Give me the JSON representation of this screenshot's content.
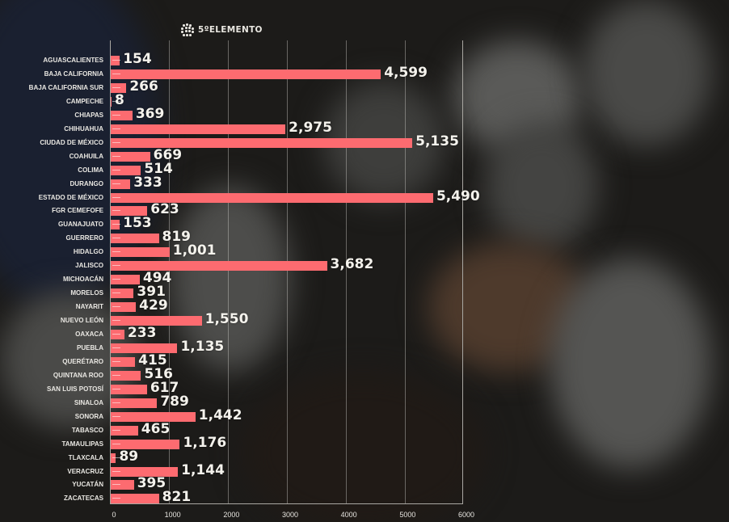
{
  "brand": {
    "name": "5ºELEMENTO",
    "icon": "dot-grid-logo-icon"
  },
  "colors": {
    "bar": "#fd6b70",
    "text": "#f4f2ec",
    "grid": "#a9a7a2",
    "background": "#1c1b19"
  },
  "chart_data": {
    "type": "bar",
    "orientation": "horizontal",
    "title": "",
    "xlabel": "",
    "ylabel": "",
    "xlim": [
      0,
      6000
    ],
    "xticks": [
      "0",
      "1000",
      "2000",
      "3000",
      "4000",
      "5000",
      "6000"
    ],
    "grid": true,
    "legend": null,
    "categories": [
      "AGUASCALIENTES",
      "BAJA CALIFORNIA",
      "BAJA CALIFORNIA SUR",
      "CAMPECHE",
      "CHIAPAS",
      "CHIHUAHUA",
      "CIUDAD DE MÉXICO",
      "COAHUILA",
      "COLIMA",
      "DURANGO",
      "ESTADO DE MÉXICO",
      "FGR CEMEFOFE",
      "GUANAJUATO",
      "GUERRERO",
      "HIDALGO",
      "JALISCO",
      "MICHOACÁN",
      "MORELOS",
      "NAYARIT",
      "NUEVO LEÓN",
      "OAXACA",
      "PUEBLA",
      "QUERÉTARO",
      "QUINTANA ROO",
      "SAN LUIS POTOSÍ",
      "SINALOA",
      "SONORA",
      "TABASCO",
      "TAMAULIPAS",
      "TLAXCALA",
      "VERACRUZ",
      "YUCATÁN",
      "ZACATECAS"
    ],
    "values": [
      154,
      4599,
      266,
      8,
      369,
      2975,
      5135,
      669,
      514,
      333,
      5490,
      623,
      153,
      819,
      1001,
      3682,
      494,
      391,
      429,
      1550,
      233,
      1135,
      415,
      516,
      617,
      789,
      1442,
      465,
      1176,
      89,
      1144,
      395,
      821
    ],
    "value_labels": [
      "154",
      "4,599",
      "266",
      "8",
      "369",
      "2,975",
      "5,135",
      "669",
      "514",
      "333",
      "5,490",
      "623",
      "153",
      "819",
      "1,001",
      "3,682",
      "494",
      "391",
      "429",
      "1,550",
      "233",
      "1,135",
      "415",
      "516",
      "617",
      "789",
      "1,442",
      "465",
      "1,176",
      "89",
      "1,144",
      "395",
      "821"
    ]
  }
}
